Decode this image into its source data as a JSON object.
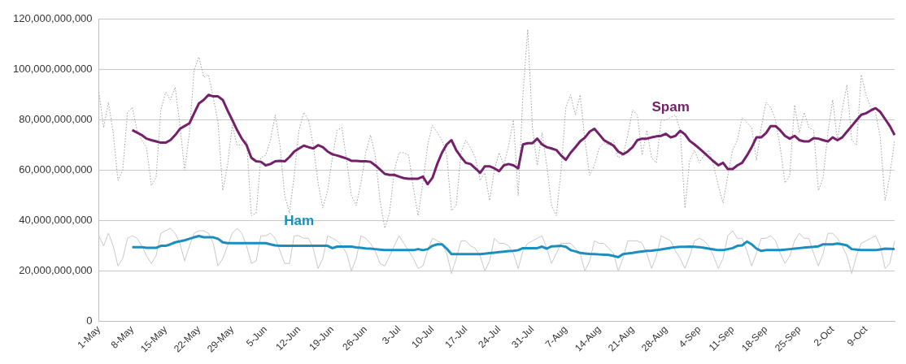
{
  "chart_data": {
    "type": "line",
    "categories": [
      "1-May",
      null,
      null,
      null,
      null,
      null,
      null,
      "8-May",
      null,
      null,
      null,
      null,
      null,
      null,
      "15-May",
      null,
      null,
      null,
      null,
      null,
      null,
      "22-May",
      null,
      null,
      null,
      null,
      null,
      null,
      "29-May",
      null,
      null,
      null,
      null,
      null,
      null,
      "5-Jun",
      null,
      null,
      null,
      null,
      null,
      null,
      "12-Jun",
      null,
      null,
      null,
      null,
      null,
      null,
      "19-Jun",
      null,
      null,
      null,
      null,
      null,
      null,
      "26-Jun",
      null,
      null,
      null,
      null,
      null,
      null,
      "3-Jul",
      null,
      null,
      null,
      null,
      null,
      null,
      "10-Jul",
      null,
      null,
      null,
      null,
      null,
      null,
      "17-Jul",
      null,
      null,
      null,
      null,
      null,
      null,
      "24-Jul",
      null,
      null,
      null,
      null,
      null,
      null,
      "31-Jul",
      null,
      null,
      null,
      null,
      null,
      null,
      "7-Aug",
      null,
      null,
      null,
      null,
      null,
      null,
      "14-Aug",
      null,
      null,
      null,
      null,
      null,
      null,
      "21-Aug",
      null,
      null,
      null,
      null,
      null,
      null,
      "28-Aug",
      null,
      null,
      null,
      null,
      null,
      null,
      "4-Sep",
      null,
      null,
      null,
      null,
      null,
      null,
      "11-Sep",
      null,
      null,
      null,
      null,
      null,
      null,
      "18-Sep",
      null,
      null,
      null,
      null,
      null,
      null,
      "25-Sep",
      null,
      null,
      null,
      null,
      null,
      null,
      "2-Oct",
      null,
      null,
      null,
      null,
      null,
      null,
      "9-Oct",
      null,
      null,
      null,
      null,
      null,
      null
    ],
    "ylim": [
      0,
      120000000000.0
    ],
    "yticks": [
      0,
      {
        "value": 20000000000.0,
        "label": "20,000,000,000"
      },
      {
        "value": 40000000000.0,
        "label": "40,000,000,000"
      },
      {
        "value": 60000000000.0,
        "label": "60,000,000,000"
      },
      {
        "value": 80000000000.0,
        "label": "80,000,000,000"
      },
      {
        "value": 100000000000.0,
        "label": "100,000,000,000"
      },
      {
        "value": 120000000000.0,
        "label": "120,000,000,000"
      }
    ],
    "grid": "y",
    "legend": false,
    "marker": "none",
    "series": [
      {
        "color": "#a0a0a0",
        "line_style": "dotted",
        "values": [
          91000000000.0,
          77000000000.0,
          87000000000.0,
          75000000000.0,
          56000000000.0,
          60000000000.0,
          83000000000.0,
          85000000000.0,
          76000000000.0,
          72000000000.0,
          69000000000.0,
          54000000000.0,
          57000000000.0,
          84000000000.0,
          91000000000.0,
          88000000000.0,
          93000000000.0,
          78000000000.0,
          60000000000.0,
          75000000000.0,
          100000000000.0,
          105000000000.0,
          97000000000.0,
          98000000000.0,
          89000000000.0,
          79000000000.0,
          52000000000.0,
          62000000000.0,
          78000000000.0,
          70000000000.0,
          70000000000.0,
          72000000000.0,
          42000000000.0,
          43000000000.0,
          65000000000.0,
          66000000000.0,
          72000000000.0,
          82000000000.0,
          70000000000.0,
          50000000000.0,
          43000000000.0,
          58000000000.0,
          76000000000.0,
          83000000000.0,
          80000000000.0,
          70000000000.0,
          55000000000.0,
          45000000000.0,
          52000000000.0,
          65000000000.0,
          76000000000.0,
          77000000000.0,
          64000000000.0,
          50000000000.0,
          46000000000.0,
          55000000000.0,
          67000000000.0,
          74000000000.0,
          66000000000.0,
          48000000000.0,
          37000000000.0,
          43000000000.0,
          60000000000.0,
          67000000000.0,
          67000000000.0,
          66000000000.0,
          53000000000.0,
          42000000000.0,
          55000000000.0,
          70000000000.0,
          78000000000.0,
          75000000000.0,
          72000000000.0,
          66000000000.0,
          44000000000.0,
          46000000000.0,
          67000000000.0,
          72000000000.0,
          69000000000.0,
          65000000000.0,
          56000000000.0,
          59000000000.0,
          48000000000.0,
          60000000000.0,
          67000000000.0,
          62000000000.0,
          70000000000.0,
          80000000000.0,
          50000000000.0,
          90000000000.0,
          116000000000.0,
          77000000000.0,
          62000000000.0,
          75000000000.0,
          62000000000.0,
          46000000000.0,
          42000000000.0,
          60000000000.0,
          85000000000.0,
          90000000000.0,
          82000000000.0,
          90000000000.0,
          72000000000.0,
          58000000000.0,
          62000000000.0,
          69000000000.0,
          71000000000.0,
          70000000000.0,
          72000000000.0,
          65000000000.0,
          66000000000.0,
          74000000000.0,
          84000000000.0,
          82000000000.0,
          66000000000.0,
          76000000000.0,
          65000000000.0,
          63000000000.0,
          80000000000.0,
          80000000000.0,
          81000000000.0,
          82000000000.0,
          76000000000.0,
          45000000000.0,
          64000000000.0,
          68000000000.0,
          63000000000.0,
          66000000000.0,
          68000000000.0,
          62000000000.0,
          54000000000.0,
          47000000000.0,
          58000000000.0,
          68000000000.0,
          72000000000.0,
          81000000000.0,
          79000000000.0,
          77000000000.0,
          64000000000.0,
          77000000000.0,
          87000000000.0,
          85000000000.0,
          80000000000.0,
          69000000000.0,
          55000000000.0,
          58000000000.0,
          86000000000.0,
          75000000000.0,
          83000000000.0,
          77000000000.0,
          76000000000.0,
          52000000000.0,
          57000000000.0,
          75000000000.0,
          88000000000.0,
          72000000000.0,
          84000000000.0,
          94000000000.0,
          72000000000.0,
          70000000000.0,
          98000000000.0,
          90000000000.0,
          85000000000.0,
          83000000000.0,
          73000000000.0,
          48000000000.0,
          58000000000.0,
          72000000000.0
        ]
      },
      {
        "color": "#c8c8c8",
        "line_style": "solid",
        "values": [
          34000000000.0,
          30000000000.0,
          35000000000.0,
          30000000000.0,
          22000000000.0,
          25000000000.0,
          33000000000.0,
          34000000000.0,
          33000000000.0,
          30000000000.0,
          26000000000.0,
          23000000000.0,
          26000000000.0,
          35000000000.0,
          36000000000.0,
          37000000000.0,
          35000000000.0,
          31000000000.0,
          24000000000.0,
          30000000000.0,
          35000000000.0,
          36000000000.0,
          36000000000.0,
          35000000000.0,
          31000000000.0,
          22000000000.0,
          25000000000.0,
          30000000000.0,
          35000000000.0,
          37000000000.0,
          35000000000.0,
          30000000000.0,
          23000000000.0,
          24000000000.0,
          34000000000.0,
          34000000000.0,
          35000000000.0,
          33000000000.0,
          28000000000.0,
          23000000000.0,
          23000000000.0,
          34000000000.0,
          34000000000.0,
          33000000000.0,
          33000000000.0,
          29000000000.0,
          21000000000.0,
          25000000000.0,
          34000000000.0,
          33000000000.0,
          32000000000.0,
          30000000000.0,
          27000000000.0,
          20000000000.0,
          25000000000.0,
          34000000000.0,
          33000000000.0,
          31000000000.0,
          28000000000.0,
          23000000000.0,
          22000000000.0,
          26000000000.0,
          30000000000.0,
          34000000000.0,
          31000000000.0,
          28000000000.0,
          25000000000.0,
          21000000000.0,
          22000000000.0,
          28000000000.0,
          33000000000.0,
          32000000000.0,
          31000000000.0,
          27000000000.0,
          19000000000.0,
          25000000000.0,
          32000000000.0,
          32000000000.0,
          30000000000.0,
          29000000000.0,
          26000000000.0,
          20000000000.0,
          24000000000.0,
          33000000000.0,
          31000000000.0,
          31000000000.0,
          30000000000.0,
          27000000000.0,
          21000000000.0,
          28000000000.0,
          31000000000.0,
          32000000000.0,
          33000000000.0,
          34000000000.0,
          29000000000.0,
          23000000000.0,
          27000000000.0,
          31000000000.0,
          31000000000.0,
          31000000000.0,
          29000000000.0,
          27000000000.0,
          20000000000.0,
          24000000000.0,
          32000000000.0,
          31000000000.0,
          31000000000.0,
          29000000000.0,
          27000000000.0,
          20000000000.0,
          25000000000.0,
          32000000000.0,
          32000000000.0,
          32000000000.0,
          31000000000.0,
          27000000000.0,
          21000000000.0,
          26000000000.0,
          34000000000.0,
          33000000000.0,
          32000000000.0,
          28000000000.0,
          25000000000.0,
          21000000000.0,
          26000000000.0,
          32000000000.0,
          33000000000.0,
          32000000000.0,
          30000000000.0,
          26000000000.0,
          21000000000.0,
          25000000000.0,
          34000000000.0,
          36000000000.0,
          33000000000.0,
          33000000000.0,
          28000000000.0,
          22000000000.0,
          27000000000.0,
          33000000000.0,
          33000000000.0,
          34000000000.0,
          32000000000.0,
          27000000000.0,
          23000000000.0,
          26000000000.0,
          32000000000.0,
          35000000000.0,
          33000000000.0,
          33000000000.0,
          27000000000.0,
          22000000000.0,
          27000000000.0,
          35000000000.0,
          35000000000.0,
          33000000000.0,
          30000000000.0,
          26000000000.0,
          19000000000.0,
          26000000000.0,
          31000000000.0,
          32000000000.0,
          33000000000.0,
          34000000000.0,
          30000000000.0,
          21000000000.0,
          23000000000.0,
          32000000000.0
        ]
      },
      {
        "name": "Spam",
        "color": "#75206a",
        "line_style": "solid",
        "values": [
          null,
          null,
          null,
          null,
          null,
          null,
          null,
          76000000000.0,
          75000000000.0,
          74000000000.0,
          72600000000.0,
          72000000000.0,
          71500000000.0,
          71000000000.0,
          71000000000.0,
          72000000000.0,
          74000000000.0,
          76500000000.0,
          77600000000.0,
          78700000000.0,
          82700000000.0,
          86600000000.0,
          88000000000.0,
          90000000000.0,
          89400000000.0,
          89400000000.0,
          88000000000.0,
          83800000000.0,
          80000000000.0,
          76000000000.0,
          72600000000.0,
          70000000000.0,
          65000000000.0,
          63600000000.0,
          63400000000.0,
          62000000000.0,
          62500000000.0,
          63600000000.0,
          63800000000.0,
          63600000000.0,
          65300000000.0,
          67500000000.0,
          68700000000.0,
          69800000000.0,
          69200000000.0,
          68700000000.0,
          70000000000.0,
          69200000000.0,
          67500000000.0,
          66400000000.0,
          65900000000.0,
          65300000000.0,
          64700000000.0,
          63800000000.0,
          63800000000.0,
          63600000000.0,
          63600000000.0,
          63400000000.0,
          62000000000.0,
          60300000000.0,
          58600000000.0,
          58200000000.0,
          58200000000.0,
          57500000000.0,
          56900000000.0,
          56700000000.0,
          56700000000.0,
          56700000000.0,
          57500000000.0,
          54500000000.0,
          57000000000.0,
          62500000000.0,
          67000000000.0,
          70300000000.0,
          72000000000.0,
          68000000000.0,
          65300000000.0,
          63000000000.0,
          62500000000.0,
          60800000000.0,
          59000000000.0,
          61600000000.0,
          61600000000.0,
          60800000000.0,
          59700000000.0,
          62000000000.0,
          62500000000.0,
          62000000000.0,
          60800000000.0,
          70300000000.0,
          70800000000.0,
          70800000000.0,
          72600000000.0,
          70300000000.0,
          69200000000.0,
          68700000000.0,
          68100000000.0,
          65900000000.0,
          64200000000.0,
          67000000000.0,
          69200000000.0,
          71500000000.0,
          73000000000.0,
          75400000000.0,
          76500000000.0,
          74300000000.0,
          72000000000.0,
          70900000000.0,
          69800000000.0,
          67500000000.0,
          66400000000.0,
          67500000000.0,
          69200000000.0,
          72000000000.0,
          72600000000.0,
          72600000000.0,
          73100000000.0,
          73500000000.0,
          73700000000.0,
          74500000000.0,
          73100000000.0,
          73700000000.0,
          75700000000.0,
          74300000000.0,
          71700000000.0,
          70300000000.0,
          68700000000.0,
          67000000000.0,
          65300000000.0,
          63600000000.0,
          62000000000.0,
          63000000000.0,
          60500000000.0,
          60500000000.0,
          62000000000.0,
          63000000000.0,
          65900000000.0,
          69200000000.0,
          73100000000.0,
          73100000000.0,
          74800000000.0,
          77600000000.0,
          77600000000.0,
          75900000000.0,
          73700000000.0,
          72600000000.0,
          73700000000.0,
          72000000000.0,
          71500000000.0,
          71500000000.0,
          72800000000.0,
          72600000000.0,
          72000000000.0,
          71500000000.0,
          73100000000.0,
          72000000000.0,
          73100000000.0,
          75400000000.0,
          77600000000.0,
          79900000000.0,
          82100000000.0,
          82700000000.0,
          83800000000.0,
          84700000000.0,
          83200000000.0,
          80400000000.0,
          77600000000.0,
          74000000000.0
        ]
      },
      {
        "name": "Ham",
        "color": "#1b8ec0",
        "line_style": "solid",
        "values": [
          null,
          null,
          null,
          null,
          null,
          null,
          null,
          29500000000.0,
          29500000000.0,
          29500000000.0,
          29200000000.0,
          29200000000.0,
          29200000000.0,
          30000000000.0,
          30000000000.0,
          30600000000.0,
          31400000000.0,
          31800000000.0,
          32200000000.0,
          32800000000.0,
          33400000000.0,
          33900000000.0,
          33400000000.0,
          33400000000.0,
          33400000000.0,
          32800000000.0,
          31400000000.0,
          31100000000.0,
          31100000000.0,
          31100000000.0,
          31100000000.0,
          31100000000.0,
          31100000000.0,
          31100000000.0,
          31100000000.0,
          31100000000.0,
          30600000000.0,
          30200000000.0,
          30000000000.0,
          30000000000.0,
          30000000000.0,
          30000000000.0,
          30000000000.0,
          30000000000.0,
          30000000000.0,
          30000000000.0,
          30000000000.0,
          30000000000.0,
          30000000000.0,
          29100000000.0,
          29700000000.0,
          29700000000.0,
          29700000000.0,
          29700000000.0,
          29400000000.0,
          29200000000.0,
          29000000000.0,
          28900000000.0,
          28700000000.0,
          28500000000.0,
          28300000000.0,
          28300000000.0,
          28300000000.0,
          28300000000.0,
          28300000000.0,
          28300000000.0,
          28300000000.0,
          28700000000.0,
          28300000000.0,
          28700000000.0,
          30000000000.0,
          30600000000.0,
          30600000000.0,
          28900000000.0,
          26700000000.0,
          26700000000.0,
          26700000000.0,
          26700000000.0,
          26700000000.0,
          26700000000.0,
          26700000000.0,
          26900000000.0,
          27100000000.0,
          27300000000.0,
          27500000000.0,
          27700000000.0,
          27900000000.0,
          28000000000.0,
          28300000000.0,
          29100000000.0,
          29100000000.0,
          29100000000.0,
          29100000000.0,
          29700000000.0,
          28900000000.0,
          29800000000.0,
          29900000000.0,
          30000000000.0,
          29600000000.0,
          28300000000.0,
          27800000000.0,
          27200000000.0,
          27000000000.0,
          26800000000.0,
          26700000000.0,
          26600000000.0,
          26500000000.0,
          26400000000.0,
          26000000000.0,
          25500000000.0,
          26700000000.0,
          27000000000.0,
          27200000000.0,
          27500000000.0,
          27800000000.0,
          28000000000.0,
          28100000000.0,
          28300000000.0,
          28600000000.0,
          28900000000.0,
          29200000000.0,
          29500000000.0,
          29600000000.0,
          29600000000.0,
          29700000000.0,
          29600000000.0,
          29500000000.0,
          29200000000.0,
          28900000000.0,
          28600000000.0,
          28300000000.0,
          28300000000.0,
          28700000000.0,
          29100000000.0,
          30000000000.0,
          30200000000.0,
          31700000000.0,
          30600000000.0,
          28900000000.0,
          28000000000.0,
          28300000000.0,
          28300000000.0,
          28300000000.0,
          28300000000.0,
          28500000000.0,
          28700000000.0,
          28900000000.0,
          29100000000.0,
          29300000000.0,
          29500000000.0,
          29600000000.0,
          29800000000.0,
          30600000000.0,
          30600000000.0,
          30600000000.0,
          30900000000.0,
          30600000000.0,
          30200000000.0,
          28700000000.0,
          28500000000.0,
          28300000000.0,
          28300000000.0,
          28300000000.0,
          28300000000.0,
          28600000000.0,
          28900000000.0,
          28800000000.0,
          28700000000.0
        ]
      }
    ]
  }
}
